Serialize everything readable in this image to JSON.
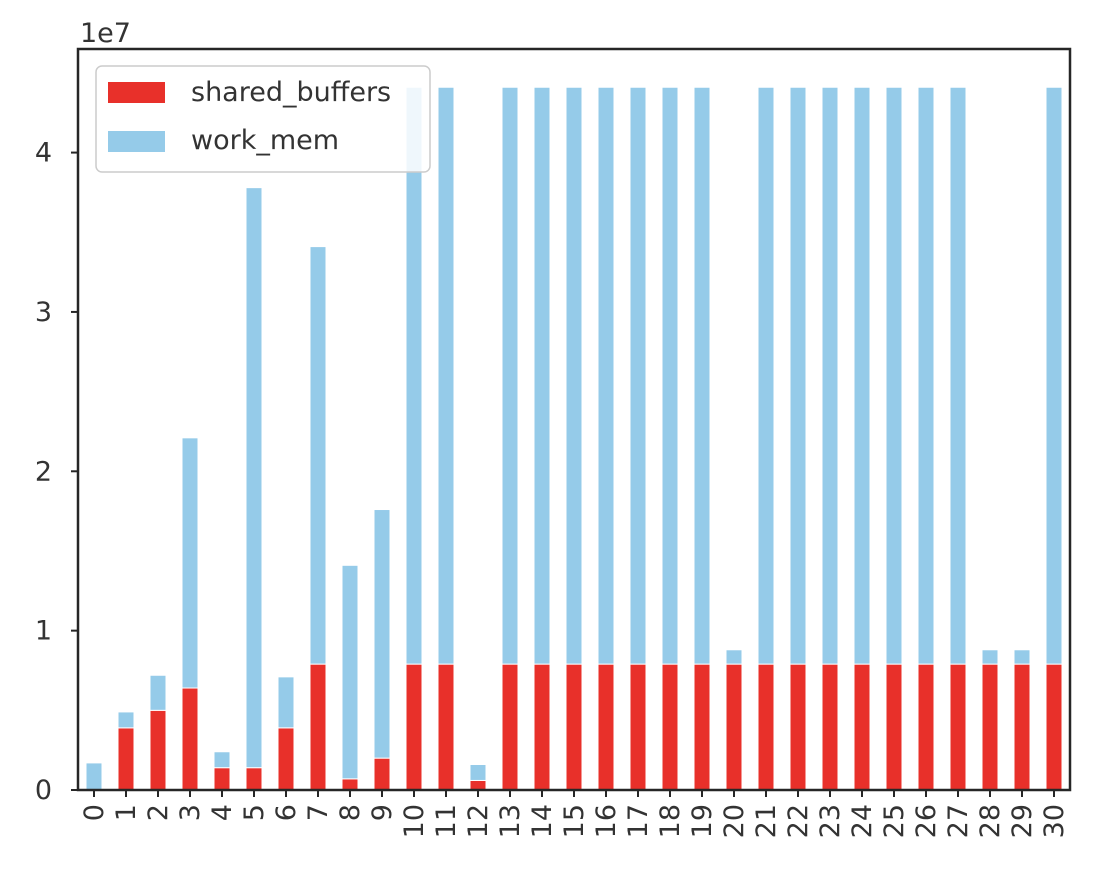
{
  "chart_data": {
    "type": "bar",
    "stacked": true,
    "categories": [
      "0",
      "1",
      "2",
      "3",
      "4",
      "5",
      "6",
      "7",
      "8",
      "9",
      "10",
      "11",
      "12",
      "13",
      "14",
      "15",
      "16",
      "17",
      "18",
      "19",
      "20",
      "21",
      "22",
      "23",
      "24",
      "25",
      "26",
      "27",
      "28",
      "29",
      "30"
    ],
    "series": [
      {
        "name": "shared_buffers",
        "color": "#e8302a",
        "values": [
          0,
          3900000,
          5000000,
          6400000,
          1400000,
          1400000,
          3900000,
          7900000,
          700000,
          2000000,
          7900000,
          7900000,
          600000,
          7900000,
          7900000,
          7900000,
          7900000,
          7900000,
          7900000,
          7900000,
          7900000,
          7900000,
          7900000,
          7900000,
          7900000,
          7900000,
          7900000,
          7900000,
          7900000,
          7900000,
          7900000
        ]
      },
      {
        "name": "work_mem",
        "color": "#95cbe9",
        "values": [
          1700000,
          1000000,
          2200000,
          15700000,
          1000000,
          36400000,
          3200000,
          26200000,
          13400000,
          15600000,
          36200000,
          36200000,
          1000000,
          36200000,
          36200000,
          36200000,
          36200000,
          36200000,
          36200000,
          36200000,
          900000,
          36200000,
          36200000,
          36200000,
          36200000,
          36200000,
          36200000,
          36200000,
          900000,
          900000,
          36200000
        ]
      }
    ],
    "offset_label": "1e7",
    "yticks": [
      "0",
      "1",
      "2",
      "3",
      "4"
    ],
    "ytick_values": [
      0,
      10000000,
      20000000,
      30000000,
      40000000
    ],
    "ylim": [
      0,
      46500000
    ],
    "legend_position": "upper-left",
    "grid": false
  }
}
